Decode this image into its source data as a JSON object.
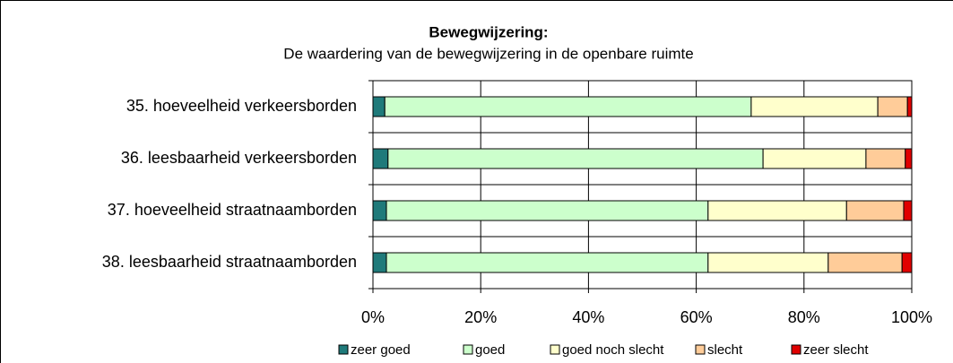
{
  "chart_data": {
    "type": "stacked_bar_horizontal",
    "title": "Bewegwijzering:",
    "subtitle": "De waardering van de bewegwijzering in de openbare ruimte",
    "categories": [
      "35. hoeveelheid verkeersborden",
      "36. leesbaarheid verkeersborden",
      "37. hoeveelheid straatnaamborden",
      "38. leesbaarheid straatnaamborden"
    ],
    "series": [
      {
        "name": "zeer goed",
        "color": "#1f7a7a",
        "values": [
          2.2,
          2.8,
          2.5,
          2.5
        ]
      },
      {
        "name": "goed",
        "color": "#ccffcc",
        "values": [
          68,
          69.6,
          59.7,
          59.7
        ]
      },
      {
        "name": "goed noch slecht",
        "color": "#ffffcc",
        "values": [
          23.5,
          19.1,
          25.7,
          22.3
        ]
      },
      {
        "name": "slecht",
        "color": "#ffcc99",
        "values": [
          5.5,
          7.3,
          10.6,
          13.7
        ]
      },
      {
        "name": "zeer slecht",
        "color": "#e00000",
        "values": [
          0.8,
          1.2,
          1.5,
          1.8
        ]
      }
    ],
    "xlim": [
      0,
      100
    ],
    "xticks": [
      {
        "value": 0,
        "label": "0%"
      },
      {
        "value": 20,
        "label": "20%"
      },
      {
        "value": 40,
        "label": "40%"
      },
      {
        "value": 60,
        "label": "60%"
      },
      {
        "value": 80,
        "label": "80%"
      },
      {
        "value": 100,
        "label": "100%"
      }
    ],
    "grid": true,
    "legend": "bottom"
  }
}
